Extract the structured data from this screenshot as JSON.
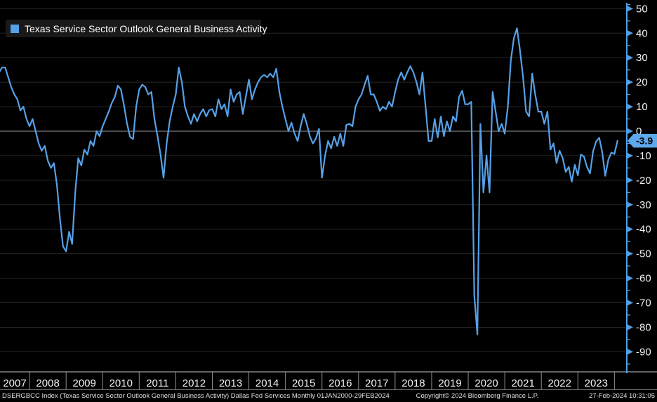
{
  "legend": {
    "label": "Texas Service Sector Outlook General Business Activity"
  },
  "footer": {
    "left": "DSERGBCC Index (Texas Service Sector Outlook General Business Activity) Dallas Fed Services  Monthly 01JAN2000-29FEB2024",
    "center": "Copyright© 2024 Bloomberg Finance L.P.",
    "right": "27-Feb-2024 10:31:05"
  },
  "colors": {
    "background": "#000000",
    "line": "#56a0e6",
    "axis": "#4f9fe6",
    "tag_bg": "#5da9ec",
    "tag_text": "#000000",
    "grid": "#262626",
    "zero_line": "#999999",
    "x_axis_line": "#c8c8c8",
    "separator": "#8f8f8f",
    "frame_line": "#777777",
    "label_text": "#f2f2f2"
  },
  "y_axis": {
    "ticks": [
      50,
      40,
      30,
      20,
      10,
      0,
      -10,
      -20,
      -30,
      -40,
      -50,
      -60,
      -70,
      -80,
      -90
    ],
    "minor_step": 5,
    "last_value_label": "-3.9"
  },
  "x_axis": {
    "year_labels": [
      "2007",
      "2008",
      "2009",
      "2010",
      "2011",
      "2012",
      "2013",
      "2014",
      "2015",
      "2016",
      "2017",
      "2018",
      "2019",
      "2020",
      "2021",
      "2022",
      "2023"
    ]
  },
  "chart_data": {
    "type": "line",
    "title": "Texas Service Sector Outlook General Business Activity",
    "xlabel": "",
    "ylabel": "",
    "frequency": "monthly",
    "x_start": "2007-01",
    "x_end": "2024-02",
    "ylim": [
      -95,
      52
    ],
    "grid": true,
    "zero_line": true,
    "legend_position": "top-left",
    "last_value": -3.9,
    "series": [
      {
        "name": "Texas Service Sector Outlook General Business Activity",
        "values": [
          24,
          25,
          24,
          26,
          26,
          22,
          18,
          15,
          13,
          8.5,
          10,
          5,
          2,
          5,
          0,
          -5,
          -8,
          -6,
          -12,
          -15,
          -13,
          -22,
          -36,
          -47,
          -49,
          -41,
          -46,
          -25,
          -11,
          -14,
          -7.5,
          -9.5,
          -4,
          -6,
          0,
          -2,
          2,
          5,
          8,
          11.5,
          14,
          18.6,
          17,
          10.6,
          3,
          -2.3,
          -3.2,
          10,
          17,
          19,
          18,
          15,
          16,
          5,
          -2,
          -9.5,
          -19,
          -5,
          4,
          10,
          15,
          26,
          20,
          10,
          6,
          3,
          7,
          4,
          7,
          9,
          6,
          8.6,
          9,
          6,
          13,
          9,
          11,
          6,
          17,
          12,
          15,
          16,
          7,
          14,
          21,
          13,
          17,
          20,
          22,
          23,
          22,
          23.5,
          22,
          25.5,
          16,
          10,
          5,
          0,
          3.5,
          -1,
          -4,
          2,
          7,
          3,
          -2,
          -5,
          -3,
          1,
          -19,
          -10,
          -4,
          -7,
          -2.3,
          -6,
          -1,
          -6,
          2.5,
          3,
          2,
          10,
          13,
          15,
          19,
          22.6,
          15,
          15,
          12,
          8.3,
          10,
          9,
          12,
          10,
          16,
          21,
          24,
          21,
          24,
          26.5,
          24,
          20,
          15,
          24,
          10,
          -4,
          -4,
          5,
          -2.6,
          6,
          -2,
          4,
          0,
          6,
          4,
          14,
          16.5,
          11,
          11,
          12,
          -67,
          -83,
          3,
          -25,
          -10,
          -25,
          16,
          8,
          0,
          3,
          -1,
          10,
          29,
          38,
          42,
          33,
          22,
          8,
          6,
          23.5,
          15,
          8,
          8,
          3,
          8,
          -7.5,
          -5,
          -13,
          -8,
          -10.9,
          -16.6,
          -14.6,
          -20.6,
          -13.7,
          -18,
          -9.5,
          -10.4,
          -14.6,
          -17.2,
          -8.2,
          -4.2,
          -2.7,
          -8.6,
          -18.2,
          -11.6,
          -8.7,
          -9.3,
          -3.9
        ]
      }
    ]
  }
}
